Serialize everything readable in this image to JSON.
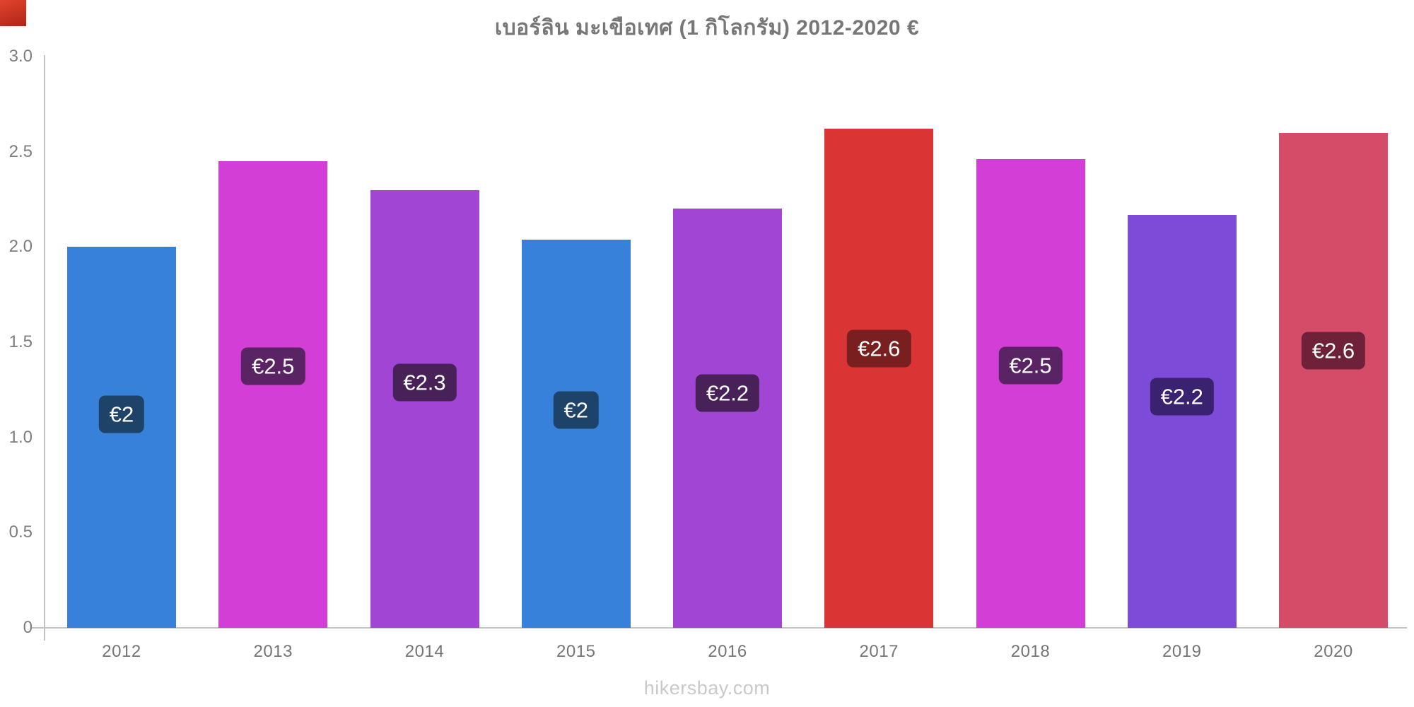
{
  "title": "เบอร์ลิน มะเขือเทศ (1 กิโลกรัม) 2012-2020 €",
  "footer": "hikersbay.com",
  "corner_marker_color": "#c9301f",
  "chart_data": {
    "type": "bar",
    "title": "เบอร์ลิน มะเขือเทศ (1 กิโลกรัม) 2012-2020 €",
    "categories": [
      "2012",
      "2013",
      "2014",
      "2015",
      "2016",
      "2017",
      "2018",
      "2019",
      "2020"
    ],
    "values": [
      2.0,
      2.45,
      2.3,
      2.04,
      2.2,
      2.62,
      2.46,
      2.17,
      2.6
    ],
    "value_labels": [
      "€2",
      "€2.5",
      "€2.3",
      "€2",
      "€2.2",
      "€2.6",
      "€2.5",
      "€2.2",
      "€2.6"
    ],
    "bar_colors": [
      "#3781db",
      "#d33fd6",
      "#a045d4",
      "#3781db",
      "#a045d4",
      "#db3434",
      "#d33fd6",
      "#7c4bd8",
      "#d44c68"
    ],
    "label_bg_colors": [
      "#1d4369",
      "#5a2364",
      "#482158",
      "#1d4369",
      "#482158",
      "#7a1f1f",
      "#5a2364",
      "#3a2270",
      "#6e2138"
    ],
    "ylim": [
      0,
      3
    ],
    "ytick_labels": [
      "3.0",
      "2.5",
      "2.0",
      "1.5",
      "1.0",
      "0.5",
      "0"
    ],
    "ytick_values": [
      3.0,
      2.5,
      2.0,
      1.5,
      1.0,
      0.5,
      0
    ],
    "xlabel": "",
    "ylabel": "",
    "legend": "none",
    "grid": "off",
    "axis_color": "#c2c2c2",
    "title_color": "#777777",
    "tick_color": "#7d7d7d",
    "x_tick_color": "#757575",
    "footer_color": "#c8c8cd",
    "value_label_text_color": "#ffffff"
  }
}
